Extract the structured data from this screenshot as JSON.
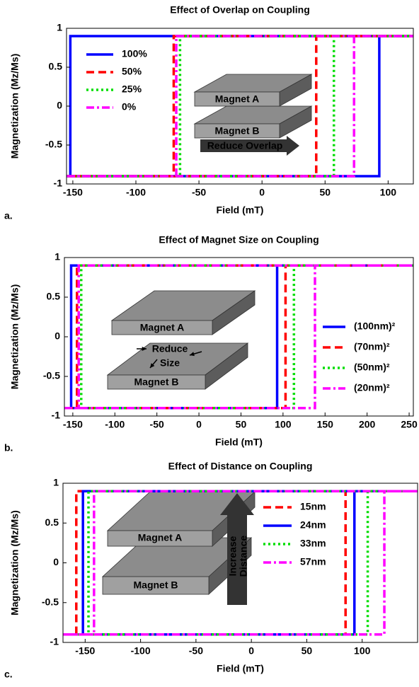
{
  "chart_data": [
    {
      "type": "line",
      "title": "Effect of Overlap on Coupling",
      "panel_label": "a.",
      "xlabel": "Field (mT)",
      "ylabel": "Magnetization (Mz/Ms)",
      "xlim": [
        -155,
        120
      ],
      "ylim": [
        -1,
        1
      ],
      "xticks": [
        -150,
        -100,
        -50,
        0,
        50,
        100
      ],
      "yticks": [
        -1,
        -0.5,
        0,
        0.5,
        1
      ],
      "legend": "upper left",
      "annotations": [
        "Magnet A",
        "Magnet B",
        "Reduce Overlap"
      ],
      "series": [
        {
          "name": "100%",
          "color": "#0000ff",
          "style": "solid",
          "x": [
            -155,
            93,
            93,
            120,
            -152,
            -152,
            -155
          ],
          "values": [
            -0.9,
            -0.9,
            0.9,
            0.9,
            0.9,
            -0.9,
            -0.9
          ]
        },
        {
          "name": "50%",
          "color": "#ff0000",
          "style": "dashed",
          "x": [
            -155,
            43,
            43,
            120,
            -70,
            -70,
            -155
          ],
          "values": [
            -0.9,
            -0.9,
            0.9,
            0.9,
            0.9,
            -0.9,
            -0.9
          ]
        },
        {
          "name": "25%",
          "color": "#00dd00",
          "style": "dotted",
          "x": [
            -155,
            57,
            57,
            120,
            -65,
            -65,
            -155
          ],
          "values": [
            -0.9,
            -0.9,
            0.9,
            0.9,
            0.9,
            -0.9,
            -0.9
          ]
        },
        {
          "name": "0%",
          "color": "#ff00ff",
          "style": "dashdot",
          "x": [
            -155,
            73,
            73,
            120,
            -68,
            -68,
            -155
          ],
          "values": [
            -0.9,
            -0.9,
            0.9,
            0.9,
            0.9,
            -0.9,
            -0.9
          ]
        }
      ]
    },
    {
      "type": "line",
      "title": "Effect of Magnet Size on Coupling",
      "panel_label": "b.",
      "xlabel": "Field (mT)",
      "ylabel": "Magnetization (Mz/Ms)",
      "xlim": [
        -160,
        255
      ],
      "ylim": [
        -1,
        1
      ],
      "xticks": [
        -150,
        -100,
        -50,
        0,
        50,
        100,
        150,
        200,
        250
      ],
      "yticks": [
        -1,
        -0.5,
        0,
        0.5,
        1
      ],
      "legend": "right",
      "annotations": [
        "Magnet A",
        "Magnet B",
        "Reduce",
        "Size"
      ],
      "series": [
        {
          "name": "(100nm)²",
          "color": "#0000ff",
          "style": "solid",
          "x": [
            -160,
            93,
            93,
            255,
            -152,
            -152,
            -160
          ],
          "values": [
            -0.9,
            -0.9,
            0.9,
            0.9,
            0.9,
            -0.9,
            -0.9
          ]
        },
        {
          "name": "(70nm)²",
          "color": "#ff0000",
          "style": "dashed",
          "x": [
            -160,
            103,
            103,
            255,
            -145,
            -145,
            -160
          ],
          "values": [
            -0.9,
            -0.9,
            0.9,
            0.9,
            0.9,
            -0.9,
            -0.9
          ]
        },
        {
          "name": "(50nm)²",
          "color": "#00dd00",
          "style": "dotted",
          "x": [
            -160,
            113,
            113,
            255,
            -140,
            -140,
            -160
          ],
          "values": [
            -0.9,
            -0.9,
            0.9,
            0.9,
            0.9,
            -0.9,
            -0.9
          ]
        },
        {
          "name": "(20nm)²",
          "color": "#ff00ff",
          "style": "dashdot",
          "x": [
            -160,
            138,
            138,
            255,
            -143,
            -143,
            -160
          ],
          "values": [
            -0.9,
            -0.9,
            0.9,
            0.9,
            0.9,
            -0.9,
            -0.9
          ]
        }
      ]
    },
    {
      "type": "line",
      "title": "Effect of Distance on Coupling",
      "panel_label": "c.",
      "xlabel": "Field (mT)",
      "ylabel": "Magnetization (Mz/Ms)",
      "xlim": [
        -170,
        150
      ],
      "ylim": [
        -1,
        1
      ],
      "xticks": [
        -150,
        -100,
        -50,
        0,
        50,
        100
      ],
      "yticks": [
        -1,
        -0.5,
        0,
        0.5,
        1
      ],
      "legend": "upper right",
      "annotations": [
        "Magnet A",
        "Magnet B",
        "Increase",
        "Distance"
      ],
      "series": [
        {
          "name": "15nm",
          "color": "#ff0000",
          "style": "dashed",
          "x": [
            -170,
            85,
            85,
            150,
            -158,
            -158,
            -170
          ],
          "values": [
            -0.9,
            -0.9,
            0.9,
            0.9,
            0.9,
            -0.9,
            -0.9
          ]
        },
        {
          "name": "24nm",
          "color": "#0000ff",
          "style": "solid",
          "x": [
            -170,
            93,
            93,
            150,
            -152,
            -152,
            -170
          ],
          "values": [
            -0.9,
            -0.9,
            0.9,
            0.9,
            0.9,
            -0.9,
            -0.9
          ]
        },
        {
          "name": "33nm",
          "color": "#00dd00",
          "style": "dotted",
          "x": [
            -170,
            105,
            105,
            150,
            -147,
            -147,
            -170
          ],
          "values": [
            -0.9,
            -0.9,
            0.9,
            0.9,
            0.9,
            -0.9,
            -0.9
          ]
        },
        {
          "name": "57nm",
          "color": "#ff00ff",
          "style": "dashdot",
          "x": [
            -170,
            120,
            120,
            150,
            -142,
            -142,
            -170
          ],
          "values": [
            -0.9,
            -0.9,
            0.9,
            0.9,
            0.9,
            -0.9,
            -0.9
          ]
        }
      ]
    }
  ]
}
